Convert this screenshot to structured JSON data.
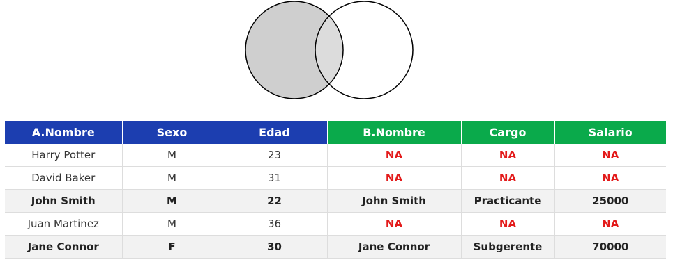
{
  "colors": {
    "table_a_header": "#1c3eb0",
    "table_b_header": "#0aaa4b",
    "na_text": "#e31b1b",
    "left_circle_fill": "#cfcfcf",
    "right_circle_fill": "#ffffff",
    "circle_stroke": "#000000"
  },
  "venn": {
    "highlighted_set": "left",
    "shape": "two-circle-left-join"
  },
  "table": {
    "headers": [
      "A.Nombre",
      "Sexo",
      "Edad",
      "B.Nombre",
      "Cargo",
      "Salario"
    ],
    "rows": [
      {
        "cells": [
          "Harry Potter",
          "M",
          "23",
          "NA",
          "NA",
          "NA"
        ],
        "matched": false
      },
      {
        "cells": [
          "David Baker",
          "M",
          "31",
          "NA",
          "NA",
          "NA"
        ],
        "matched": false
      },
      {
        "cells": [
          "John Smith",
          "M",
          "22",
          "John Smith",
          "Practicante",
          "25000"
        ],
        "matched": true
      },
      {
        "cells": [
          "Juan Martinez",
          "M",
          "36",
          "NA",
          "NA",
          "NA"
        ],
        "matched": false
      },
      {
        "cells": [
          "Jane Connor",
          "F",
          "30",
          "Jane Connor",
          "Subgerente",
          "70000"
        ],
        "matched": true
      }
    ]
  }
}
